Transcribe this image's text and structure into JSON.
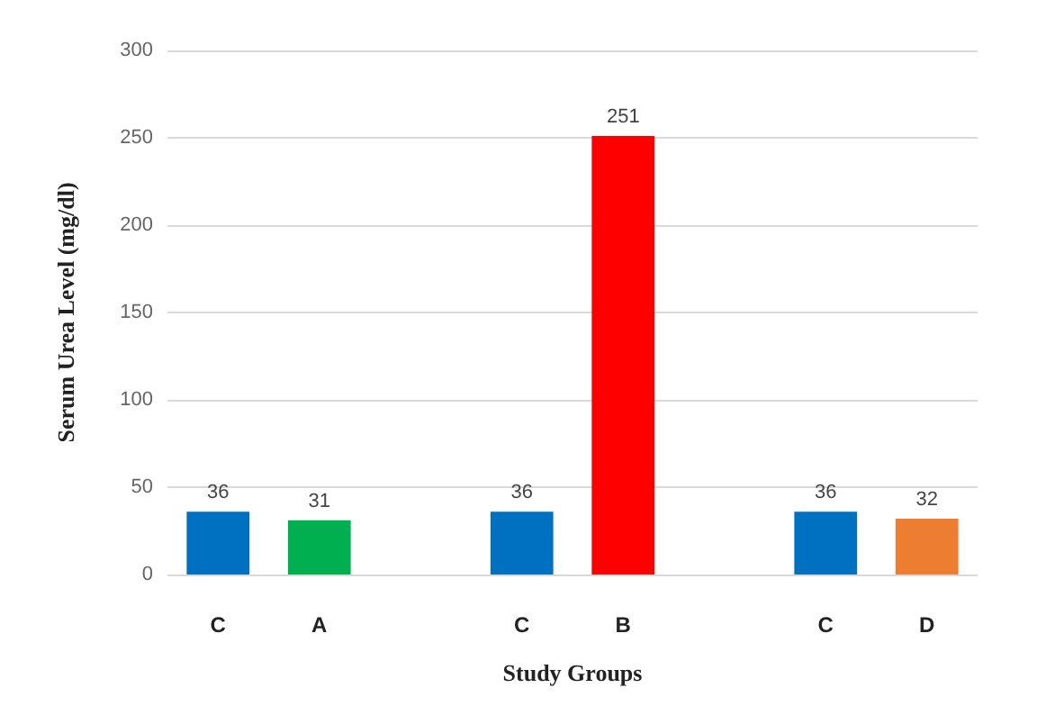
{
  "chart_data": {
    "type": "bar",
    "xlabel": "Study Groups",
    "ylabel": "Serum Urea Level (mg/dl)",
    "categories": [
      "C",
      "A",
      null,
      "C",
      "B",
      null,
      "C",
      "D"
    ],
    "values": [
      36,
      31,
      null,
      36,
      251,
      null,
      36,
      32
    ],
    "colors": [
      "#0070c0",
      "#00b050",
      null,
      "#0070c0",
      "#ff0000",
      null,
      "#0070c0",
      "#ed7d31"
    ],
    "ylim": [
      0,
      300
    ],
    "yticks": [
      0,
      50,
      100,
      150,
      200,
      250,
      300
    ],
    "grid": "y",
    "data_labels": true
  }
}
